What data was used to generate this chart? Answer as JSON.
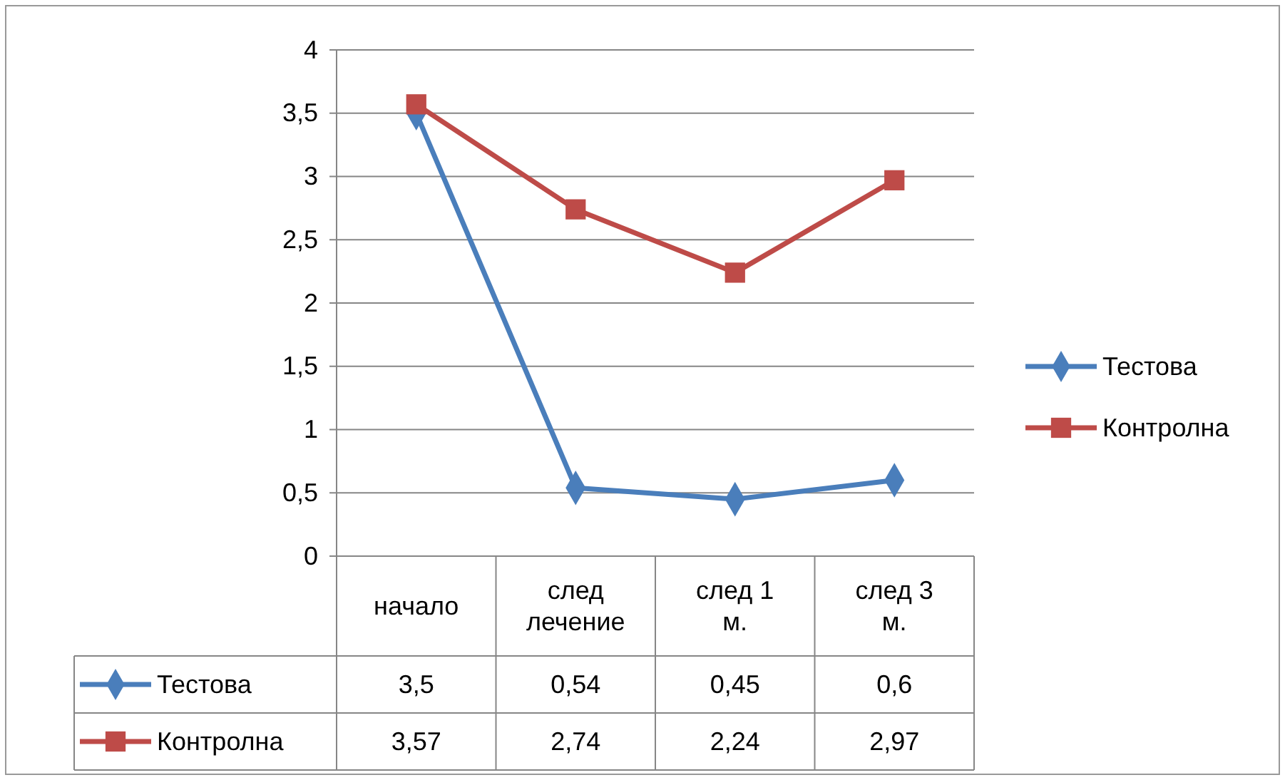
{
  "chart_data": {
    "type": "line",
    "categories": [
      "начало",
      "след лечение",
      "след 1 м.",
      "след 3 м."
    ],
    "series": [
      {
        "name": "Тестова",
        "color": "#4a7ebb",
        "marker": "diamond",
        "values": [
          3.5,
          0.54,
          0.45,
          0.6
        ],
        "value_labels": [
          "3,5",
          "0,54",
          "0,45",
          "0,6"
        ]
      },
      {
        "name": "Контролна",
        "color": "#be4b48",
        "marker": "square",
        "values": [
          3.57,
          2.74,
          2.24,
          2.97
        ],
        "value_labels": [
          "3,57",
          "2,74",
          "2,24",
          "2,97"
        ]
      }
    ],
    "ylim": [
      0,
      4
    ],
    "yticks": [
      0,
      {
        "value": 0.5,
        "label": "0,5"
      },
      1,
      {
        "value": 1.5,
        "label": "1,5"
      },
      2,
      {
        "value": 2.5,
        "label": "2,5"
      },
      3,
      {
        "value": 3.5,
        "label": "3,5"
      },
      4
    ],
    "grid": "y",
    "legend": "right",
    "line_style": "solid"
  }
}
